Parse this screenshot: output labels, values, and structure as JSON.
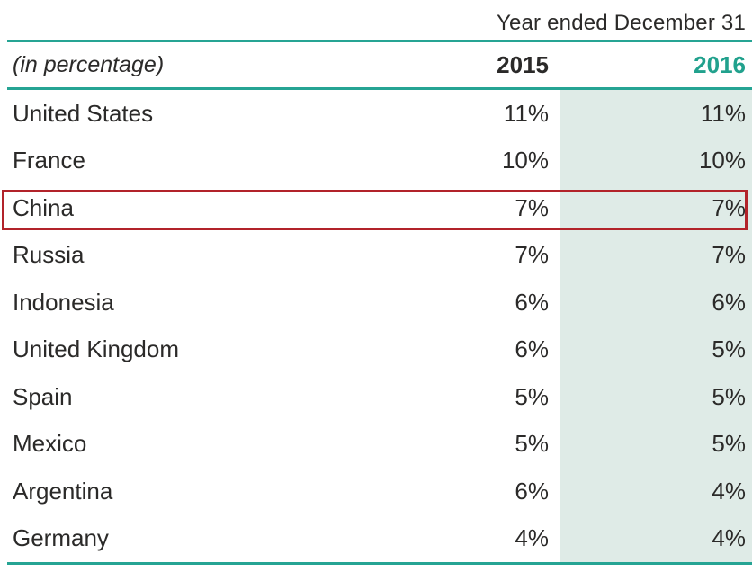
{
  "meta": {
    "header": "Year ended December 31"
  },
  "table": {
    "unit_label": "(in percentage)",
    "columns": [
      "2015",
      "2016"
    ],
    "rows": [
      {
        "country": "United States",
        "y2015": "11%",
        "y2016": "11%"
      },
      {
        "country": "France",
        "y2015": "10%",
        "y2016": "10%"
      },
      {
        "country": "China",
        "y2015": "7%",
        "y2016": "7%"
      },
      {
        "country": "Russia",
        "y2015": "7%",
        "y2016": "7%"
      },
      {
        "country": "Indonesia",
        "y2015": "6%",
        "y2016": "6%"
      },
      {
        "country": "United Kingdom",
        "y2015": "6%",
        "y2016": "5%"
      },
      {
        "country": "Spain",
        "y2015": "5%",
        "y2016": "5%"
      },
      {
        "country": "Mexico",
        "y2015": "5%",
        "y2016": "5%"
      },
      {
        "country": "Argentina",
        "y2015": "6%",
        "y2016": "4%"
      },
      {
        "country": "Germany",
        "y2015": "4%",
        "y2016": "4%"
      }
    ],
    "highlighted_country": "China"
  },
  "colors": {
    "accent_teal": "#26a494",
    "teal_header_text": "#21a18d",
    "shaded_column": "#dfebe7",
    "highlight_red": "#b2232a",
    "text": "#2b2a29"
  },
  "chart_data": {
    "type": "table",
    "title": "Year ended December 31",
    "unit": "percentage",
    "categories": [
      "United States",
      "France",
      "China",
      "Russia",
      "Indonesia",
      "United Kingdom",
      "Spain",
      "Mexico",
      "Argentina",
      "Germany"
    ],
    "series": [
      {
        "name": "2015",
        "values": [
          11,
          10,
          7,
          7,
          6,
          6,
          5,
          5,
          6,
          4
        ]
      },
      {
        "name": "2016",
        "values": [
          11,
          10,
          7,
          7,
          6,
          5,
          5,
          5,
          4,
          4
        ]
      }
    ],
    "annotations": [
      "China row outlined with red highlight box"
    ],
    "layout": "2016 column shaded light teal; teal rules above header row, below header row, and at table bottom"
  }
}
